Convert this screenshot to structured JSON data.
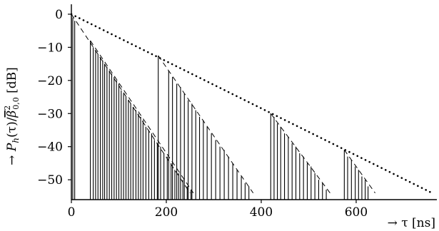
{
  "chart_data": {
    "type": "line",
    "xlabel": "→ τ  [ns]",
    "ylabel_parts": {
      "arrow": "→ ",
      "P": "P",
      "h": "h",
      "tau": "(τ)/",
      "beta": "β",
      "sq": "2",
      "sub": "0,0",
      "unit": " [dB]"
    },
    "xlim": [
      0,
      770
    ],
    "ylim": [
      -56,
      3
    ],
    "xticks": [
      0,
      200,
      400,
      600
    ],
    "xtick_labels": [
      "0",
      "200",
      "400",
      "600"
    ],
    "yticks": [
      0,
      -10,
      -20,
      -30,
      -40,
      -50
    ],
    "ytick_labels": [
      "0",
      "−10",
      "−20",
      "−30",
      "−40",
      "−50"
    ],
    "floor_db": -54,
    "grid": false,
    "envelope": {
      "style": "dotted",
      "x": [
        0,
        760
      ],
      "y": [
        0,
        -54
      ]
    },
    "clusters": [
      {
        "decay_line": {
          "x": [
            0,
            250
          ],
          "y": [
            0,
            -54
          ]
        },
        "impulses": [
          {
            "x": 0,
            "y": 0
          },
          {
            "x": 3,
            "y": -1
          },
          {
            "x": 7,
            "y": -2
          }
        ]
      },
      {
        "decay_line": {
          "x": [
            40,
            257
          ],
          "y": [
            -8,
            -54
          ]
        },
        "impulses": [
          {
            "x": 40,
            "y": -8
          },
          {
            "x": 46,
            "y": -10
          },
          {
            "x": 51,
            "y": -11
          },
          {
            "x": 56,
            "y": -12
          },
          {
            "x": 61,
            "y": -13
          },
          {
            "x": 66,
            "y": -14
          },
          {
            "x": 70,
            "y": -15
          },
          {
            "x": 75,
            "y": -16
          },
          {
            "x": 80,
            "y": -17
          },
          {
            "x": 85,
            "y": -18
          },
          {
            "x": 90,
            "y": -19
          },
          {
            "x": 95,
            "y": -20
          },
          {
            "x": 100,
            "y": -21
          },
          {
            "x": 105,
            "y": -23
          },
          {
            "x": 110,
            "y": -24
          },
          {
            "x": 115,
            "y": -25
          },
          {
            "x": 120,
            "y": -26
          },
          {
            "x": 125,
            "y": -27
          },
          {
            "x": 130,
            "y": -28
          },
          {
            "x": 136,
            "y": -29
          },
          {
            "x": 141,
            "y": -30
          },
          {
            "x": 146,
            "y": -31
          },
          {
            "x": 151,
            "y": -32
          },
          {
            "x": 157,
            "y": -34
          },
          {
            "x": 163,
            "y": -35
          },
          {
            "x": 169,
            "y": -36
          },
          {
            "x": 175,
            "y": -38
          },
          {
            "x": 181,
            "y": -39
          },
          {
            "x": 188,
            "y": -40
          },
          {
            "x": 195,
            "y": -42
          },
          {
            "x": 202,
            "y": -43
          },
          {
            "x": 210,
            "y": -45
          },
          {
            "x": 218,
            "y": -47
          },
          {
            "x": 226,
            "y": -48
          },
          {
            "x": 235,
            "y": -50
          },
          {
            "x": 244,
            "y": -52
          },
          {
            "x": 252,
            "y": -53
          }
        ]
      },
      {
        "decay_line": {
          "x": [
            183,
            383
          ],
          "y": [
            -12.5,
            -54
          ]
        },
        "impulses": [
          {
            "x": 183,
            "y": -12.5
          },
          {
            "x": 205,
            "y": -17
          },
          {
            "x": 213,
            "y": -19
          },
          {
            "x": 222,
            "y": -21
          },
          {
            "x": 230,
            "y": -22
          },
          {
            "x": 238,
            "y": -24
          },
          {
            "x": 246,
            "y": -26
          },
          {
            "x": 254,
            "y": -27
          },
          {
            "x": 262,
            "y": -29
          },
          {
            "x": 270,
            "y": -31
          },
          {
            "x": 278,
            "y": -32
          },
          {
            "x": 286,
            "y": -34
          },
          {
            "x": 295,
            "y": -36
          },
          {
            "x": 304,
            "y": -38
          },
          {
            "x": 313,
            "y": -40
          },
          {
            "x": 322,
            "y": -41
          },
          {
            "x": 331,
            "y": -43
          },
          {
            "x": 340,
            "y": -45
          },
          {
            "x": 349,
            "y": -47
          },
          {
            "x": 358,
            "y": -49
          },
          {
            "x": 366,
            "y": -51
          },
          {
            "x": 374,
            "y": -52
          }
        ]
      },
      {
        "decay_line": {
          "x": [
            420,
            545
          ],
          "y": [
            -30,
            -54
          ]
        },
        "impulses": [
          {
            "x": 420,
            "y": -30
          },
          {
            "x": 427,
            "y": -31
          },
          {
            "x": 434,
            "y": -33
          },
          {
            "x": 441,
            "y": -34
          },
          {
            "x": 449,
            "y": -36
          },
          {
            "x": 457,
            "y": -37
          },
          {
            "x": 465,
            "y": -39
          },
          {
            "x": 473,
            "y": -40
          },
          {
            "x": 481,
            "y": -42
          },
          {
            "x": 489,
            "y": -43
          },
          {
            "x": 497,
            "y": -45
          },
          {
            "x": 505,
            "y": -46
          },
          {
            "x": 513,
            "y": -48
          },
          {
            "x": 521,
            "y": -50
          },
          {
            "x": 529,
            "y": -51
          },
          {
            "x": 537,
            "y": -53
          }
        ]
      },
      {
        "decay_line": {
          "x": [
            575,
            640
          ],
          "y": [
            -41,
            -54
          ]
        },
        "impulses": [
          {
            "x": 575,
            "y": -41
          },
          {
            "x": 582,
            "y": -43
          },
          {
            "x": 590,
            "y": -44
          },
          {
            "x": 598,
            "y": -46
          },
          {
            "x": 605,
            "y": -47
          },
          {
            "x": 612,
            "y": -49
          },
          {
            "x": 619,
            "y": -50
          },
          {
            "x": 625,
            "y": -52
          }
        ]
      }
    ]
  }
}
